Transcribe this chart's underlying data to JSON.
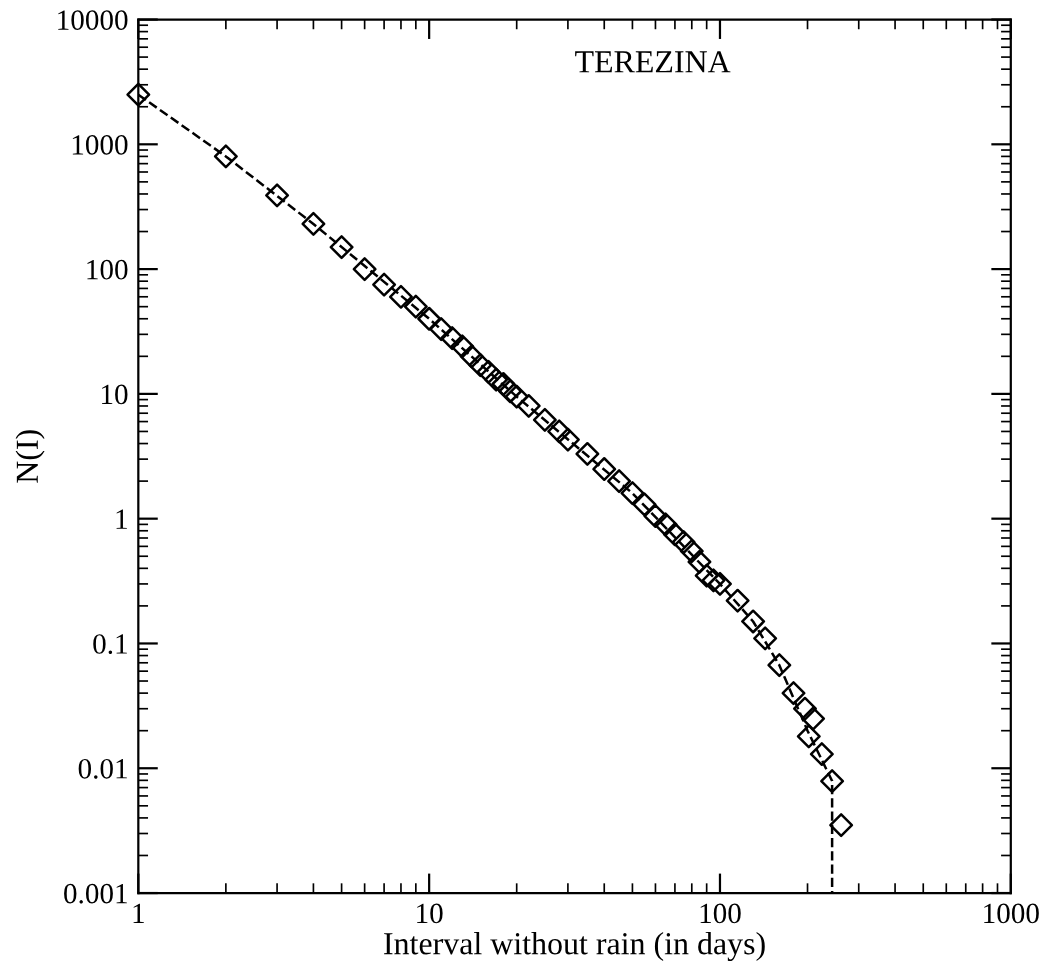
{
  "chart_data": {
    "type": "scatter",
    "title": "TEREZINA",
    "xlabel": "Interval without rain (in days)",
    "ylabel": "N(I)",
    "log": "xy",
    "grid": false,
    "legend": false,
    "xlim": [
      1,
      1000
    ],
    "ylim": [
      0.001,
      10000
    ],
    "xticks": [
      1,
      10,
      100,
      1000
    ],
    "yticks": [
      0.001,
      0.01,
      0.1,
      1,
      10,
      100,
      1000,
      10000
    ],
    "series": [
      {
        "color": "#000000",
        "marker": "diamond",
        "x": [
          1,
          2,
          3,
          4,
          5,
          6,
          7,
          8,
          9,
          10,
          11,
          12,
          13,
          14,
          15,
          16,
          17,
          18,
          19,
          20,
          22,
          25,
          28,
          30,
          35,
          40,
          45,
          50,
          55,
          60,
          65,
          70,
          75,
          80,
          85,
          90,
          95,
          100,
          115,
          130,
          143,
          160,
          179,
          196,
          202,
          209,
          224,
          243,
          261
        ],
        "values": [
          2500,
          800,
          390,
          230,
          150,
          100,
          75,
          60,
          50,
          40,
          33,
          28,
          24,
          20,
          17,
          15,
          13,
          12,
          10.5,
          9.5,
          8,
          6.2,
          5,
          4.3,
          3.3,
          2.5,
          2,
          1.6,
          1.3,
          1.05,
          0.9,
          0.75,
          0.65,
          0.55,
          0.45,
          0.35,
          0.32,
          0.3,
          0.22,
          0.15,
          0.11,
          0.067,
          0.04,
          0.03,
          0.018,
          0.025,
          0.013,
          0.0079,
          0.0035
        ]
      },
      {
        "type": "line",
        "color": "#000000",
        "line_style": "dashed",
        "x": [
          1,
          2,
          4,
          10,
          20,
          50,
          100,
          130,
          160,
          200,
          243,
          243
        ],
        "values": [
          2500,
          800,
          230,
          40,
          9.5,
          1.6,
          0.3,
          0.15,
          0.067,
          0.02,
          0.0079,
          0.001
        ]
      }
    ]
  }
}
